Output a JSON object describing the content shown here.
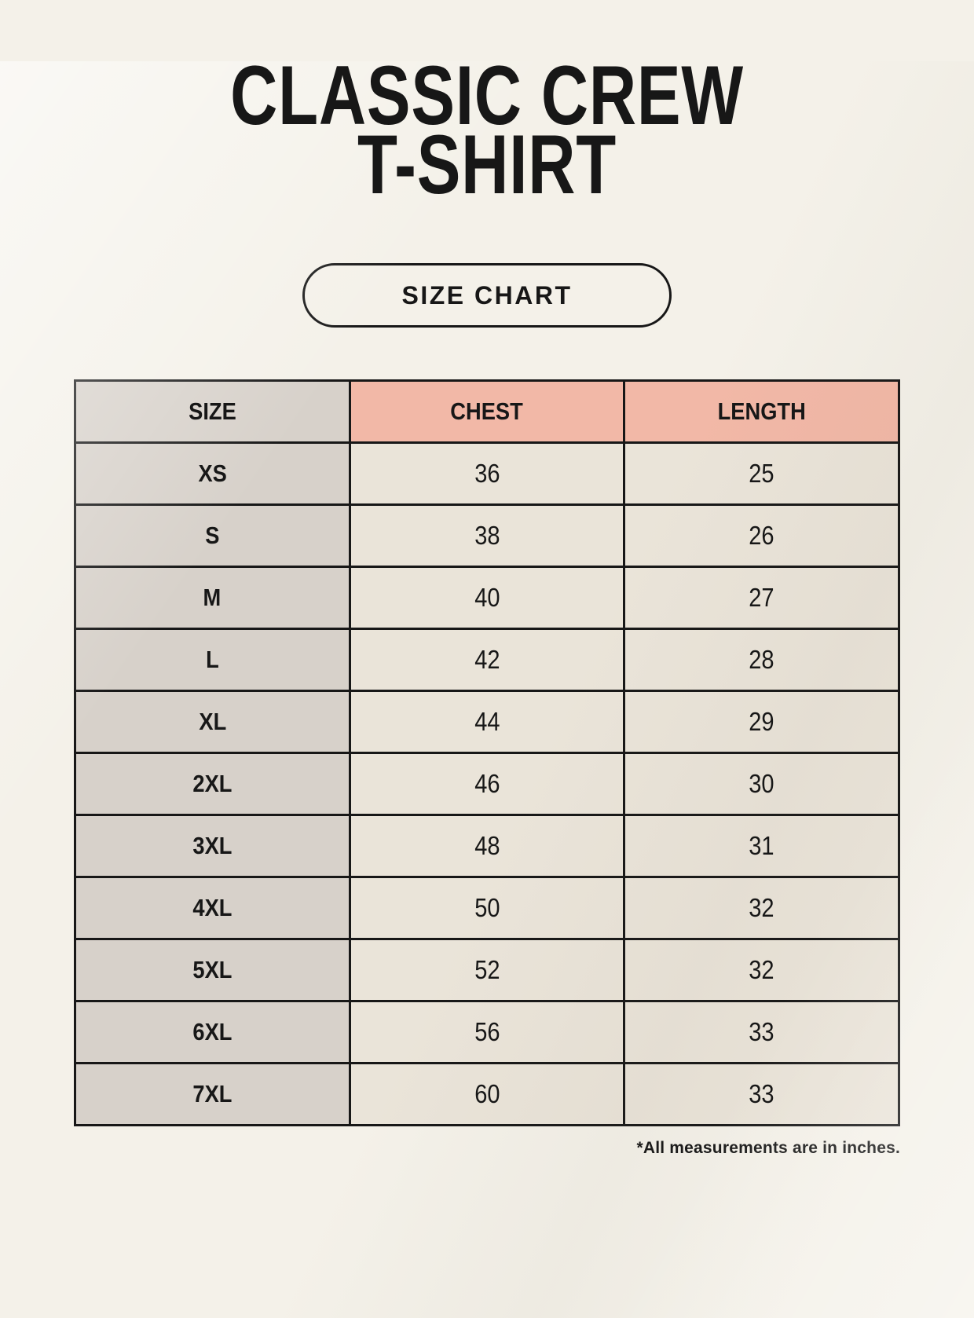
{
  "header": {
    "title_line1": "CLASSIC CREW",
    "title_line2": "T-SHIRT",
    "size_chart_button_label": "SIZE CHART"
  },
  "table": {
    "columns": [
      "SIZE",
      "CHEST",
      "LENGTH"
    ],
    "rows": [
      {
        "size": "XS",
        "chest": "36",
        "length": "25"
      },
      {
        "size": "S",
        "chest": "38",
        "length": "26"
      },
      {
        "size": "M",
        "chest": "40",
        "length": "27"
      },
      {
        "size": "L",
        "chest": "42",
        "length": "28"
      },
      {
        "size": "XL",
        "chest": "44",
        "length": "29"
      },
      {
        "size": "2XL",
        "chest": "46",
        "length": "30"
      },
      {
        "size": "3XL",
        "chest": "48",
        "length": "31"
      },
      {
        "size": "4XL",
        "chest": "50",
        "length": "32"
      },
      {
        "size": "5XL",
        "chest": "52",
        "length": "32"
      },
      {
        "size": "6XL",
        "chest": "56",
        "length": "33"
      },
      {
        "size": "7XL",
        "chest": "60",
        "length": "33"
      }
    ]
  },
  "footnote": "*All measurements are in inches.",
  "colors": {
    "background": "#f4f1e9",
    "header_accent": "#f2b8a7",
    "size_column": "#d7d1ca",
    "data_cell": "#eae4d9",
    "border": "#171717",
    "text": "#171717"
  },
  "chart_data": {
    "type": "table",
    "title": "CLASSIC CREW T-SHIRT",
    "subtitle": "SIZE CHART",
    "columns": [
      "SIZE",
      "CHEST",
      "LENGTH"
    ],
    "rows": [
      [
        "XS",
        36,
        25
      ],
      [
        "S",
        38,
        26
      ],
      [
        "M",
        40,
        27
      ],
      [
        "L",
        42,
        28
      ],
      [
        "XL",
        44,
        29
      ],
      [
        "2XL",
        46,
        30
      ],
      [
        "3XL",
        48,
        31
      ],
      [
        "4XL",
        50,
        32
      ],
      [
        "5XL",
        52,
        32
      ],
      [
        "6XL",
        56,
        33
      ],
      [
        "7XL",
        60,
        33
      ]
    ],
    "units": "inches",
    "note": "*All measurements are in inches."
  }
}
